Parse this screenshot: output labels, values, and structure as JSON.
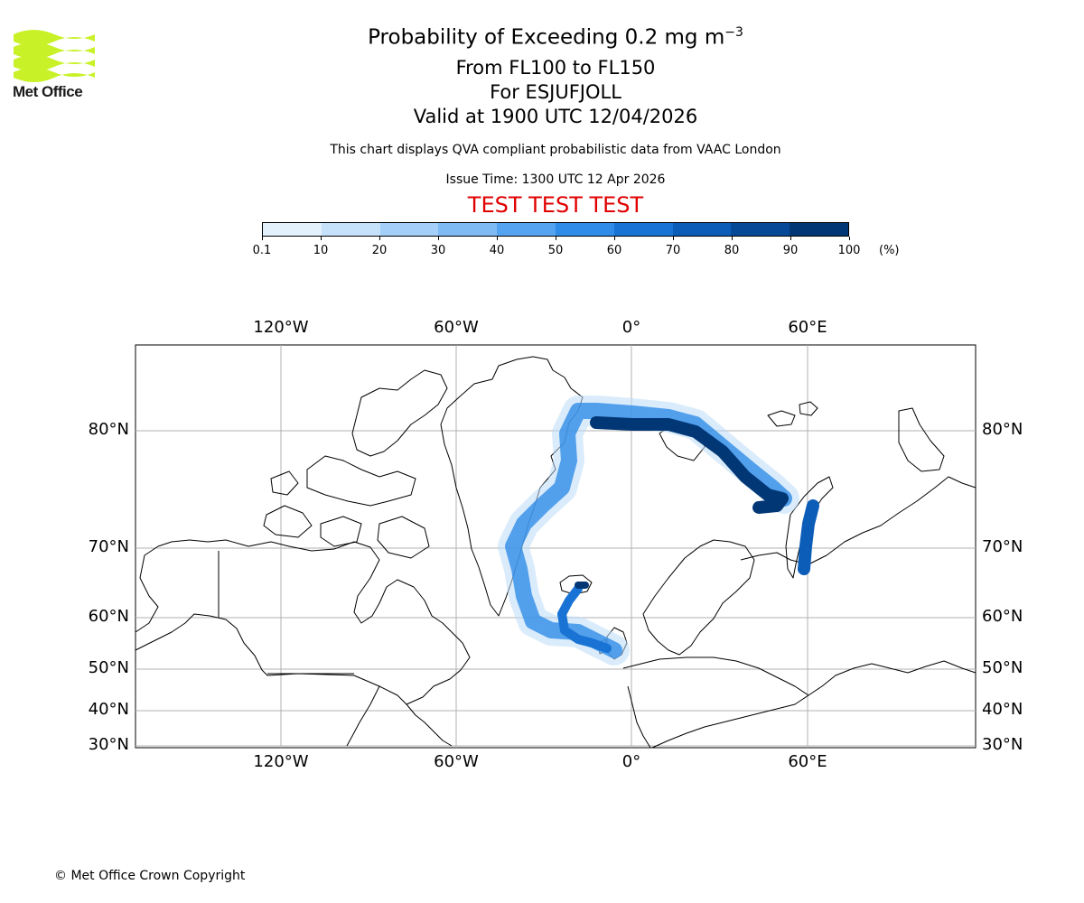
{
  "logo": {
    "text": "Met Office",
    "color": "#c8f227"
  },
  "titles": {
    "main_prefix": "Probability of Exceeding 0.2 mg m",
    "main_exponent": "−3",
    "levels": "From FL100 to FL150",
    "volcano": "For ESJUFJOLL",
    "valid": "Valid at 1900 UTC 12/04/2026",
    "description": "This chart displays QVA compliant probabilistic data from VAAC London",
    "issue_time": "Issue Time: 1300 UTC 12 Apr 2026",
    "test_banner": "TEST TEST TEST"
  },
  "colorbar": {
    "ticks": [
      "0.1",
      "10",
      "20",
      "30",
      "40",
      "50",
      "60",
      "70",
      "80",
      "90",
      "100"
    ],
    "unit": "(%)",
    "colors": [
      "#e3f1fd",
      "#c6e2fb",
      "#a3cff8",
      "#7ebbf5",
      "#55a4f1",
      "#2f8ce9",
      "#1873d4",
      "#0c5db8",
      "#064a97",
      "#023775"
    ]
  },
  "map": {
    "lon_labels": [
      "120°W",
      "60°W",
      "0°",
      "60°E"
    ],
    "lat_labels": [
      "80°N",
      "70°N",
      "60°N",
      "50°N",
      "40°N",
      "30°N"
    ]
  },
  "footer": {
    "copyright": "© Met Office Crown Copyright"
  }
}
